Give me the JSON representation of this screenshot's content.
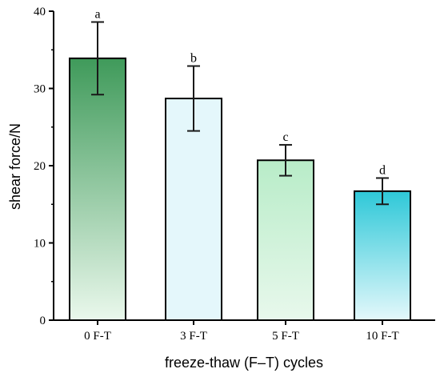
{
  "chart_data": {
    "type": "bar",
    "categories": [
      "0 F-T",
      "3 F-T",
      "5 F-T",
      "10 F-T"
    ],
    "values": [
      33.9,
      28.7,
      20.7,
      16.7
    ],
    "errors": [
      4.7,
      4.2,
      2.0,
      1.7
    ],
    "significance": [
      "a",
      "b",
      "c",
      "d"
    ],
    "xlabel": "freeze-thaw (F–T) cycles",
    "ylabel": "shear force/N",
    "ylim": [
      0,
      40
    ],
    "yticks": [
      0,
      10,
      20,
      30,
      40
    ],
    "grid": false,
    "bar_colors": [
      {
        "top": "#3f9a5a",
        "bottom": "#eaf8ec"
      },
      {
        "top": "#e4f7fb",
        "bottom": "#e4f7fb"
      },
      {
        "top": "#b8ecc8",
        "bottom": "#e8f8ec"
      },
      {
        "top": "#2ec8d8",
        "bottom": "#e4f8fb"
      }
    ]
  }
}
